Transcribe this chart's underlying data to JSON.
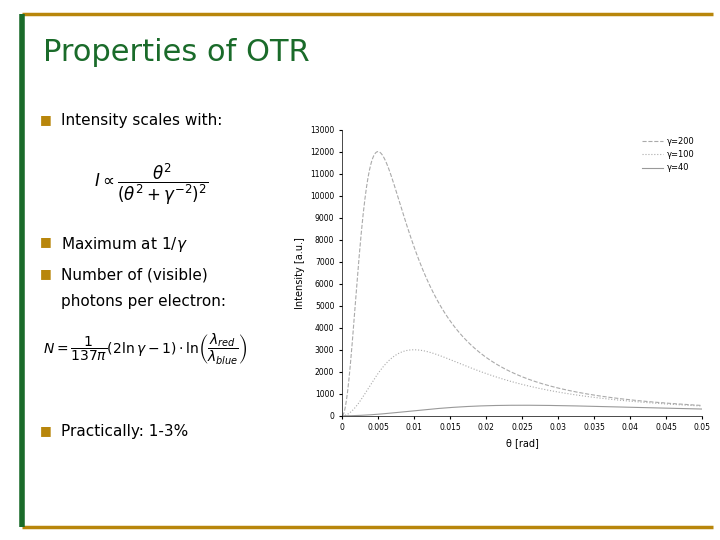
{
  "title": "Properties of OTR",
  "title_color": "#1a6b2a",
  "title_fontsize": 22,
  "bg_color": "#ffffff",
  "border_color": "#b8860b",
  "bullet_color": "#b8860b",
  "text_color": "#000000",
  "text_fontsize": 11,
  "plot_xlim": [
    0,
    0.05
  ],
  "plot_ylim": [
    0,
    13000
  ],
  "plot_xlabel": "θ [rad]",
  "plot_ylabel": "Intensity [a.u.]",
  "gamma_values": [
    200,
    100,
    40
  ],
  "gamma_labels": [
    "γ=200",
    "γ=100",
    "γ=40"
  ],
  "line_styles": [
    "--",
    ":",
    "-"
  ],
  "line_colors": [
    "#aaaaaa",
    "#aaaaaa",
    "#999999"
  ],
  "ytick_labels": [
    "0",
    "1000",
    "2000",
    "3000",
    "4000",
    "5000",
    "6000",
    "7000",
    "8000",
    "9000",
    "10000",
    "11000",
    "12000",
    "13000"
  ],
  "ytick_vals": [
    0,
    1000,
    2000,
    3000,
    4000,
    5000,
    6000,
    7000,
    8000,
    9000,
    10000,
    11000,
    12000,
    13000
  ],
  "xtick_vals": [
    0,
    0.005,
    0.01,
    0.015,
    0.02,
    0.025,
    0.03,
    0.035,
    0.04,
    0.045,
    0.05
  ],
  "xtick_labels": [
    "0",
    "0.005",
    "0.01",
    "0.015",
    "0.02",
    "0.025",
    "0.03",
    "0.035",
    "0.04",
    "0.045",
    "0.05"
  ]
}
